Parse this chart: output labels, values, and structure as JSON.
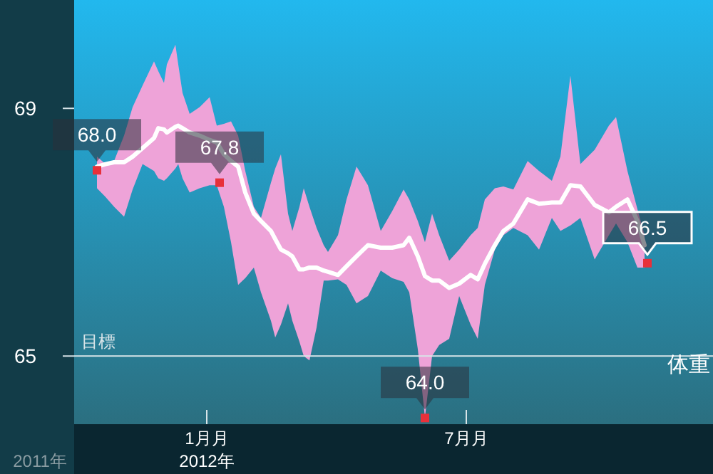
{
  "chart_data": {
    "type": "line",
    "title": "体重",
    "xlim": [
      "2011-09-30",
      "2012-12-21"
    ],
    "ylim": [
      63.9,
      70.75
    ],
    "xticks": [
      {
        "value": "2012-01-01",
        "label": "1月月"
      },
      {
        "value": "2012-07-01",
        "label": "7月月"
      }
    ],
    "yticks": [
      65,
      69
    ],
    "ref_lines": [
      {
        "axis": "y",
        "value": 65,
        "label": "目標",
        "color": "#d8e4e8"
      }
    ],
    "annotations": [
      "2011年",
      "2012年"
    ],
    "series": [
      {
        "color": "#ffffff",
        "x": [
          "2011-10-16",
          "2011-10-22",
          "2011-10-28",
          "2011-11-04",
          "2011-11-10",
          "2011-11-17",
          "2011-11-25",
          "2011-11-28",
          "2011-12-02",
          "2011-12-04",
          "2011-12-10",
          "2011-12-12",
          "2011-12-15",
          "2011-12-20",
          "2011-12-27",
          "2012-01-03",
          "2012-01-08",
          "2012-01-13",
          "2012-01-18",
          "2012-01-23",
          "2012-01-28",
          "2012-02-03",
          "2012-02-08",
          "2012-02-15",
          "2012-02-18",
          "2012-02-22",
          "2012-02-27",
          "2012-03-01",
          "2012-03-06",
          "2012-03-09",
          "2012-03-13",
          "2012-03-18",
          "2012-03-23",
          "2012-03-26",
          "2012-04-02",
          "2012-04-08",
          "2012-04-15",
          "2012-04-23",
          "2012-05-02",
          "2012-05-10",
          "2012-05-18",
          "2012-05-22",
          "2012-05-28",
          "2012-06-02",
          "2012-06-07",
          "2012-06-12",
          "2012-06-19",
          "2012-06-26",
          "2012-07-04",
          "2012-07-09",
          "2012-07-14",
          "2012-07-21",
          "2012-07-27",
          "2012-08-03",
          "2012-08-13",
          "2012-08-21",
          "2012-08-30",
          "2012-09-05",
          "2012-09-12",
          "2012-09-19",
          "2012-09-29",
          "2012-10-09",
          "2012-10-14",
          "2012-10-22",
          "2012-10-29",
          "2012-11-03"
        ],
        "values": [
          68.06,
          68.1,
          68.13,
          68.13,
          68.22,
          68.36,
          68.52,
          68.68,
          68.66,
          68.61,
          68.7,
          68.72,
          68.68,
          68.61,
          68.56,
          68.49,
          68.45,
          68.26,
          68.15,
          68.06,
          67.64,
          67.3,
          67.18,
          67.02,
          66.89,
          66.72,
          66.66,
          66.61,
          66.4,
          66.4,
          66.43,
          66.43,
          66.38,
          66.36,
          66.31,
          66.45,
          66.61,
          66.79,
          66.75,
          66.75,
          66.79,
          66.91,
          66.61,
          66.29,
          66.22,
          66.22,
          66.1,
          66.17,
          66.31,
          66.24,
          66.49,
          66.79,
          67.02,
          67.14,
          67.53,
          67.46,
          67.48,
          67.48,
          67.76,
          67.74,
          67.44,
          67.32,
          67.41,
          67.53,
          67.18,
          66.79
        ],
        "upper": [
          68.22,
          68.1,
          68.15,
          68.56,
          69.02,
          69.37,
          69.76,
          69.6,
          69.41,
          69.71,
          70.03,
          69.71,
          69.25,
          68.91,
          69.02,
          69.18,
          68.72,
          68.75,
          68.79,
          68.56,
          67.99,
          67.41,
          67.23,
          67.8,
          68.03,
          68.26,
          67.3,
          67.02,
          67.41,
          67.71,
          67.41,
          67.07,
          66.79,
          66.68,
          66.95,
          67.53,
          68.06,
          67.76,
          67.02,
          67.34,
          67.69,
          67.53,
          67.18,
          66.84,
          67.3,
          66.95,
          66.54,
          66.72,
          66.95,
          67.07,
          67.53,
          67.71,
          67.74,
          67.69,
          68.15,
          67.99,
          67.83,
          68.22,
          69.53,
          68.1,
          68.33,
          68.72,
          68.86,
          67.99,
          67.37,
          66.95
        ],
        "lower": [
          67.71,
          67.57,
          67.41,
          67.25,
          67.69,
          68.1,
          67.99,
          67.87,
          67.83,
          67.87,
          68.03,
          68.1,
          67.87,
          67.64,
          67.71,
          67.76,
          67.76,
          67.41,
          66.84,
          66.15,
          66.26,
          66.43,
          66.03,
          65.57,
          65.3,
          65.51,
          65.85,
          65.57,
          65.23,
          65.0,
          64.93,
          65.46,
          66.22,
          66.22,
          66.24,
          66.15,
          65.85,
          65.97,
          66.38,
          66.26,
          66.2,
          66.03,
          65.11,
          64.01,
          65.0,
          65.18,
          65.28,
          65.97,
          65.51,
          65.28,
          66.15,
          66.72,
          66.95,
          67.07,
          66.95,
          66.72,
          67.23,
          67.02,
          67.11,
          67.23,
          66.56,
          66.95,
          67.14,
          66.84,
          66.43,
          66.43
        ]
      },
      {
        "type": "scatter",
        "color": "#e8303a",
        "marker": "square",
        "x": [
          "2011-10-16",
          "2012-01-10",
          "2012-06-02",
          "2012-11-05"
        ],
        "values": [
          68.0,
          67.8,
          64.0,
          66.5
        ],
        "value_labels": [
          "68.0",
          "67.8",
          "64.0",
          "66.5"
        ]
      }
    ]
  }
}
